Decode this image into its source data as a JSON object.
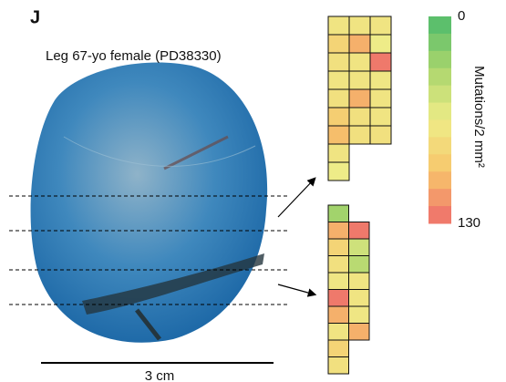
{
  "panel_label": "J",
  "title": "Leg 67-yo female (PD38330)",
  "scale_bar": "3 cm",
  "colorbar": {
    "title": "Mutations/2 mm²",
    "min": 0,
    "max": 130,
    "colormap": [
      "#4dbb6c",
      "#a9d56c",
      "#eeec88",
      "#f7c56b",
      "#ee6b6b"
    ]
  },
  "heatmaps": [
    {
      "rows": [
        [
          72,
          72,
          72
        ],
        [
          85,
          105,
          65
        ],
        [
          75,
          72,
          125
        ],
        [
          72,
          72,
          70
        ],
        [
          75,
          105,
          72
        ],
        [
          90,
          75,
          72
        ],
        [
          100,
          75,
          75
        ],
        [
          72,
          null,
          null
        ],
        [
          65,
          null,
          null
        ]
      ]
    },
    {
      "rows": [
        [
          30,
          null
        ],
        [
          105,
          125
        ],
        [
          85,
          50
        ],
        [
          75,
          40
        ],
        [
          70,
          72
        ],
        [
          125,
          72
        ],
        [
          105,
          70
        ],
        [
          72,
          105
        ],
        [
          85,
          null
        ],
        [
          75,
          null
        ]
      ]
    }
  ]
}
